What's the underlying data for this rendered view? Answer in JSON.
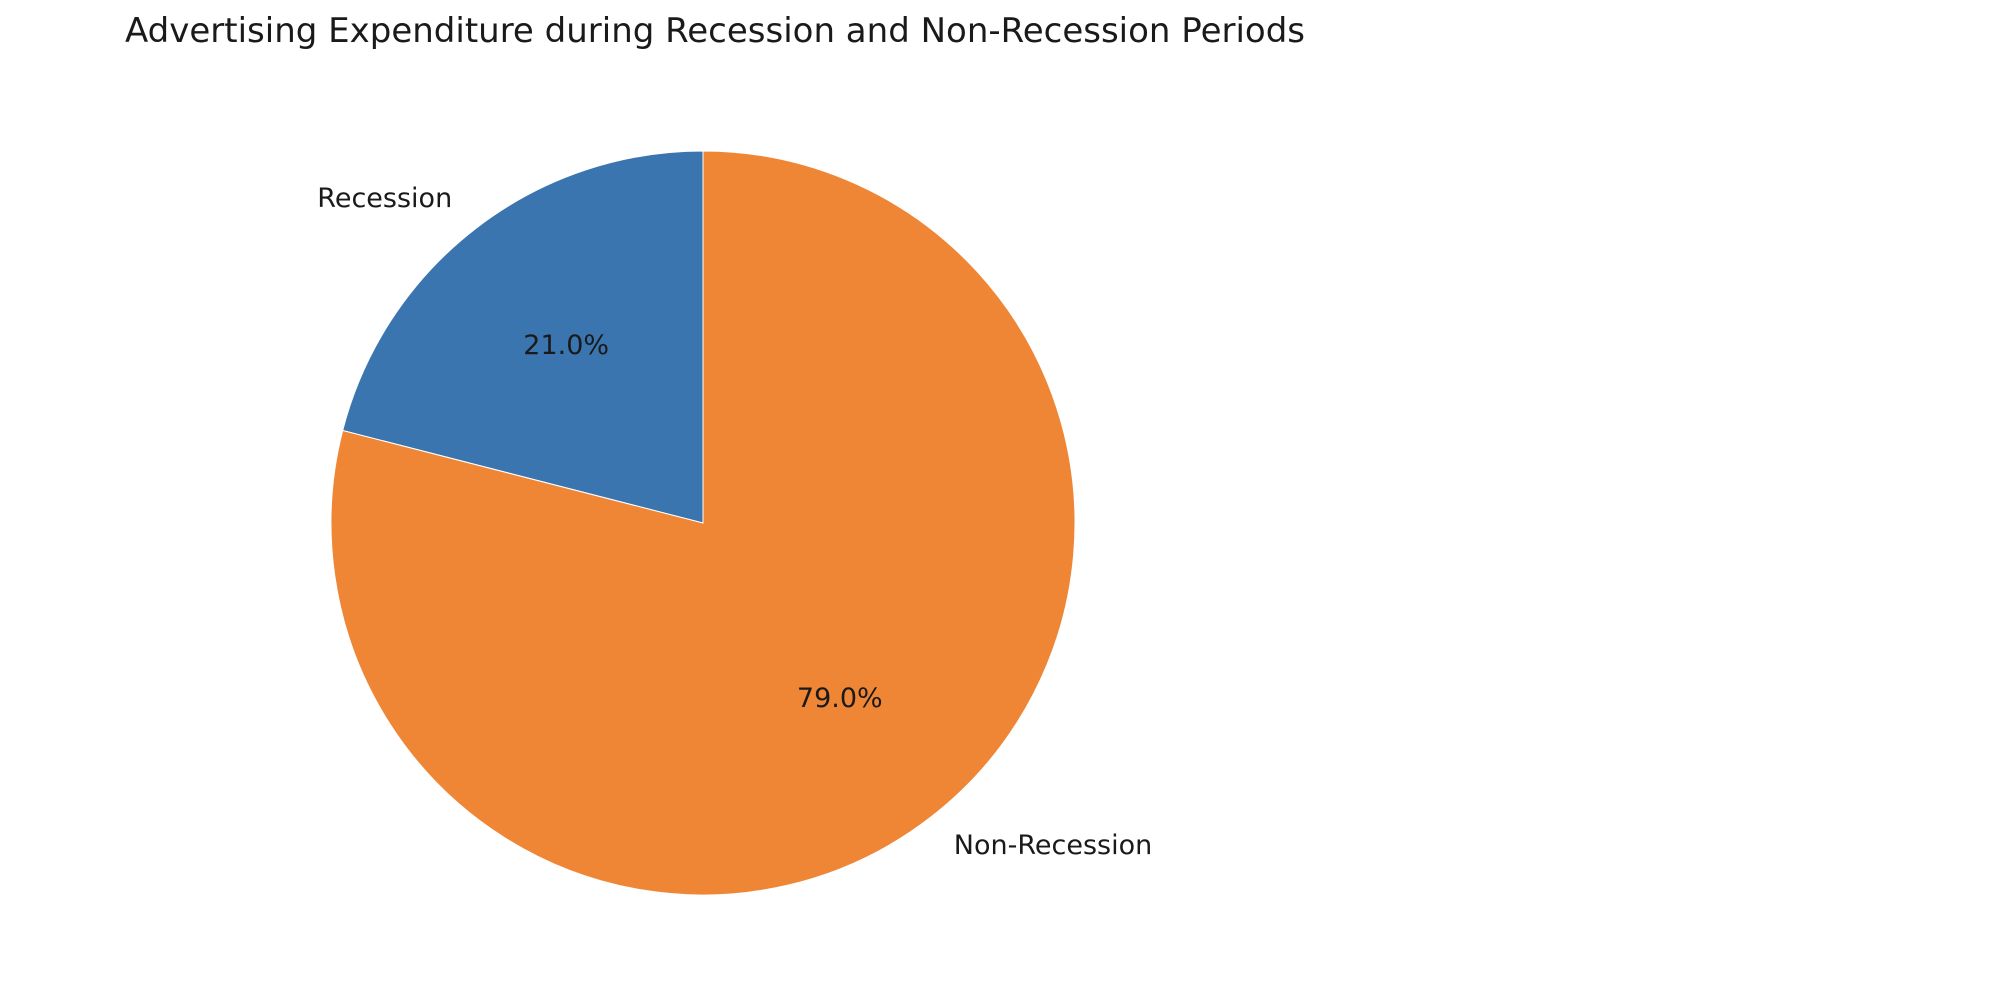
{
  "chart_data": {
    "type": "pie",
    "title": "Advertising Expenditure during Recession and Non-Recession Periods",
    "categories": [
      "Recession",
      "Non-Recession"
    ],
    "values": [
      21.0,
      79.0
    ],
    "value_labels": [
      "21.0%",
      "79.0%"
    ],
    "colors": [
      "#3a75af",
      "#ef8636"
    ],
    "start_angle_deg": 90,
    "direction": "counterclockwise",
    "legend": "none"
  }
}
